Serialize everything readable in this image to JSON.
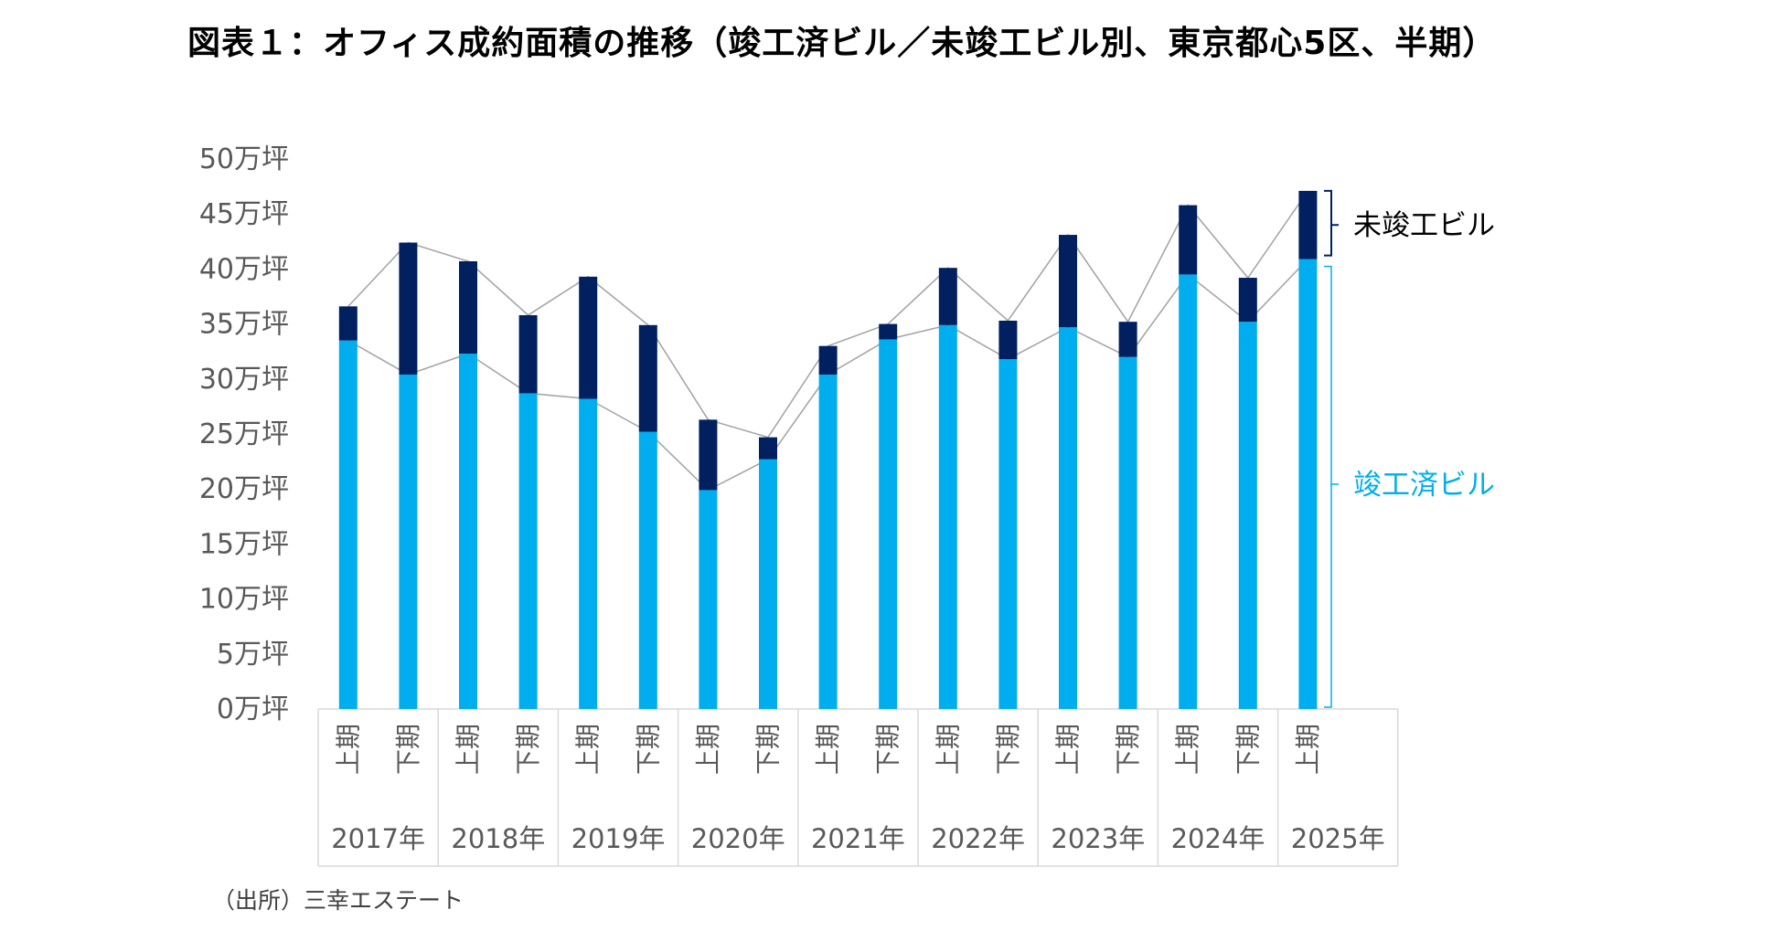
{
  "title": "図表１：オフィス成約面積の推移（竣工済ビル／未竣工ビル別、東京都心5区、半期）",
  "source": "（出所）三幸エステート",
  "colors": {
    "completed": "#00AEEF",
    "uncompleted": "#002060",
    "line": "#A6A6A6",
    "axis": "#D9D9D9",
    "text": "#595959"
  },
  "chart_data": {
    "type": "bar",
    "stacked": true,
    "title": "図表１：オフィス成約面積の推移（竣工済ビル／未竣工ビル別、東京都心5区、半期）",
    "y_unit_suffix": "万坪",
    "ylim": [
      0,
      50
    ],
    "y_ticks": [
      0,
      5,
      10,
      15,
      20,
      25,
      30,
      35,
      40,
      45,
      50
    ],
    "y_tick_labels": [
      "0万坪",
      "5万坪",
      "10万坪",
      "15万坪",
      "20万坪",
      "25万坪",
      "30万坪",
      "35万坪",
      "40万坪",
      "45万坪",
      "50万坪"
    ],
    "years": [
      "2017年",
      "2018年",
      "2019年",
      "2020年",
      "2021年",
      "2022年",
      "2023年",
      "2024年",
      "2025年"
    ],
    "categories": [
      "上期",
      "下期",
      "上期",
      "下期",
      "上期",
      "下期",
      "上期",
      "下期",
      "上期",
      "下期",
      "上期",
      "下期",
      "上期",
      "下期",
      "上期",
      "下期",
      "上期"
    ],
    "series": [
      {
        "name": "竣工済ビル",
        "values": [
          33.5,
          30.4,
          32.3,
          28.7,
          28.2,
          25.2,
          19.9,
          22.7,
          30.4,
          33.6,
          34.9,
          31.8,
          34.7,
          32.0,
          39.5,
          35.2,
          40.9
        ]
      },
      {
        "name": "未竣工ビル",
        "values": [
          3.1,
          12.0,
          8.4,
          7.1,
          11.1,
          9.7,
          6.4,
          2.0,
          2.6,
          1.4,
          5.2,
          3.5,
          8.4,
          3.2,
          6.3,
          4.0,
          6.2
        ]
      }
    ],
    "grid": false,
    "legend": "right (brace labels)"
  }
}
